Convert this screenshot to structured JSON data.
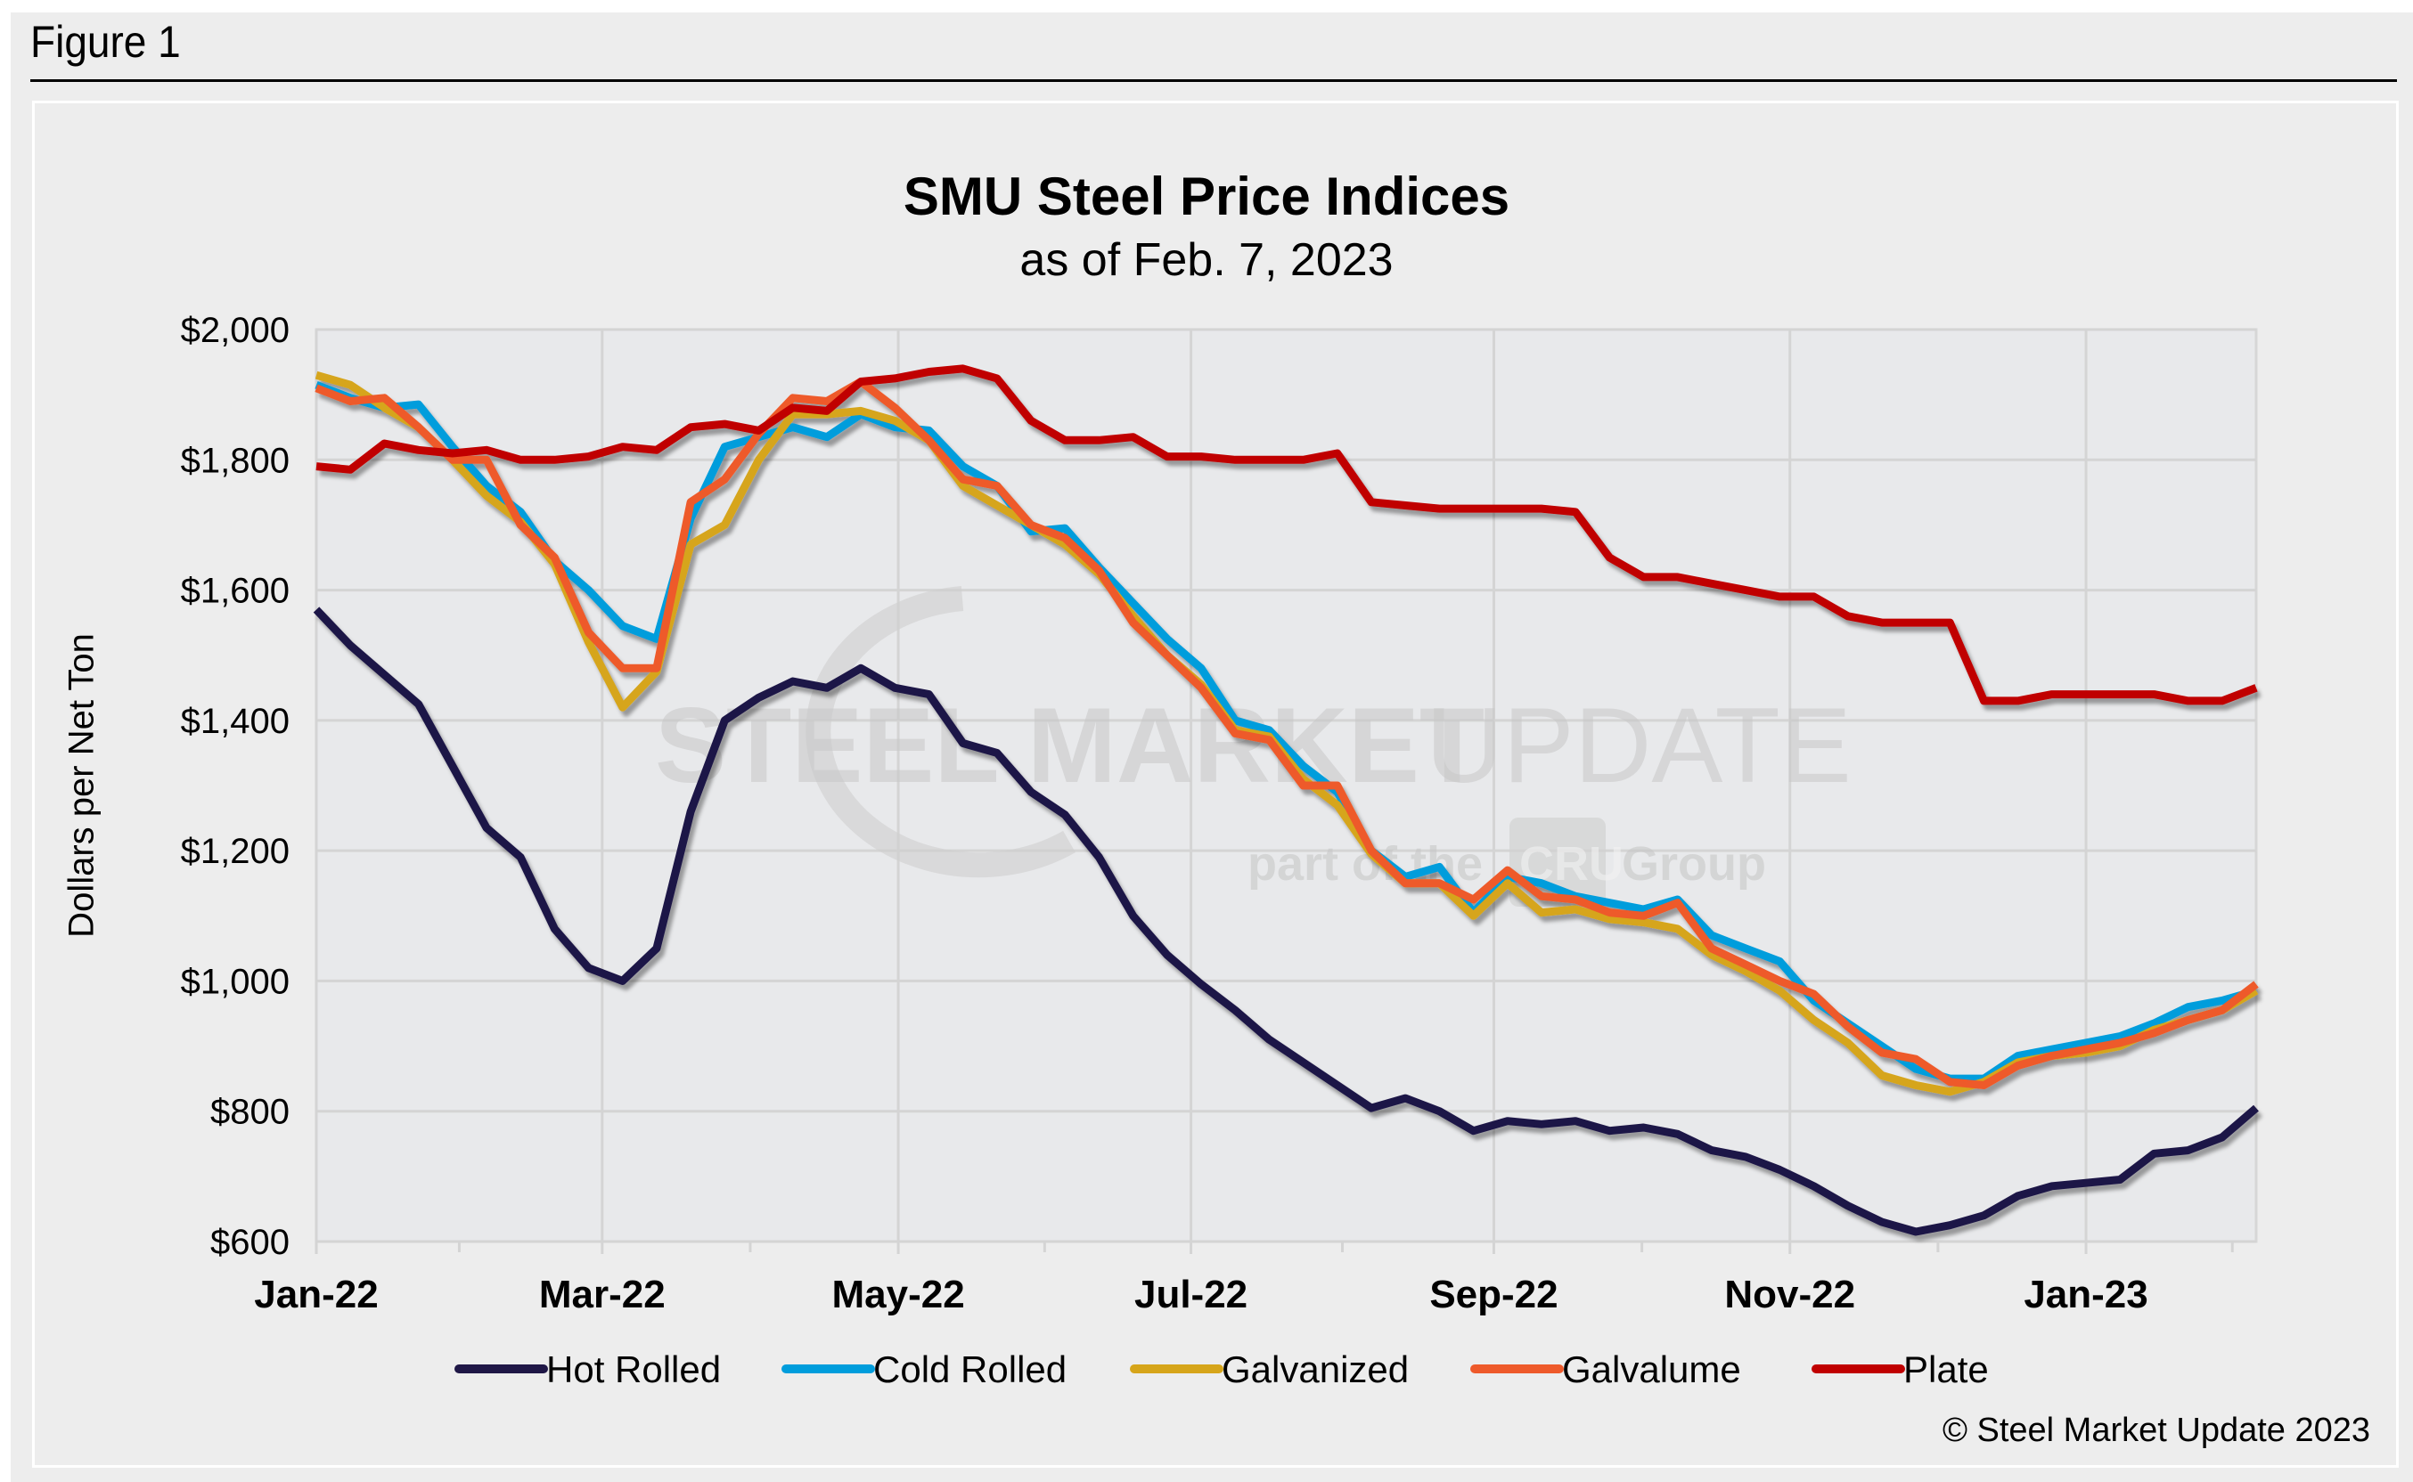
{
  "figure_label": "Figure 1",
  "copyright": "© Steel Market Update 2023",
  "watermark": {
    "line1_bold": "STEEL MARKET",
    "line1_thin": " UPDATE",
    "line2_left": "part of the",
    "line2_badge": "CRU",
    "line2_right": "Group"
  },
  "chart_data": {
    "type": "line",
    "title": "SMU Steel Price Indices",
    "subtitle": "as of Feb. 7, 2023",
    "xlabel": "",
    "ylabel": "Dollars per Net Ton",
    "ylim": [
      600,
      2000
    ],
    "yticks": [
      600,
      800,
      1000,
      1200,
      1400,
      1600,
      1800,
      2000
    ],
    "ytick_labels": [
      "$600",
      "$800",
      "$1,000",
      "$1,200",
      "$1,400",
      "$1,600",
      "$1,800",
      "$2,000"
    ],
    "x_start": "2022-01-04",
    "x_end": "2023-02-07",
    "x_frequency": "weekly",
    "xtick_labels": [
      "Jan-22",
      "Mar-22",
      "May-22",
      "Jul-22",
      "Sep-22",
      "Nov-22",
      "Jan-23"
    ],
    "xtick_weeks": [
      0,
      8.4,
      17.1,
      25.7,
      34.6,
      43.3,
      52.0
    ],
    "grid": true,
    "legend_position": "bottom",
    "series": [
      {
        "name": "Hot Rolled",
        "color": "#1f1746",
        "values": [
          1570,
          1515,
          1470,
          1425,
          1330,
          1235,
          1190,
          1080,
          1020,
          1000,
          1050,
          1260,
          1400,
          1435,
          1460,
          1450,
          1480,
          1450,
          1440,
          1365,
          1350,
          1290,
          1255,
          1190,
          1100,
          1040,
          995,
          955,
          910,
          875,
          840,
          805,
          820,
          800,
          770,
          785,
          780,
          785,
          770,
          775,
          765,
          740,
          730,
          710,
          685,
          655,
          630,
          615,
          625,
          640,
          670,
          685,
          690,
          695,
          735,
          740,
          760,
          805
        ]
      },
      {
        "name": "Cold Rolled",
        "color": "#009ddc",
        "values": [
          1915,
          1895,
          1880,
          1885,
          1820,
          1760,
          1720,
          1645,
          1600,
          1545,
          1525,
          1710,
          1820,
          1835,
          1850,
          1835,
          1870,
          1850,
          1845,
          1790,
          1760,
          1690,
          1695,
          1635,
          1580,
          1525,
          1480,
          1400,
          1385,
          1330,
          1290,
          1200,
          1160,
          1175,
          1105,
          1160,
          1150,
          1130,
          1120,
          1110,
          1125,
          1070,
          1050,
          1030,
          970,
          935,
          900,
          865,
          850,
          850,
          885,
          895,
          905,
          915,
          935,
          960,
          970,
          985
        ]
      },
      {
        "name": "Galvanized",
        "color": "#d6a51a",
        "values": [
          1930,
          1915,
          1880,
          1850,
          1800,
          1745,
          1705,
          1640,
          1520,
          1420,
          1475,
          1670,
          1700,
          1800,
          1870,
          1870,
          1875,
          1860,
          1830,
          1760,
          1730,
          1700,
          1670,
          1625,
          1560,
          1500,
          1455,
          1385,
          1375,
          1310,
          1270,
          1195,
          1150,
          1150,
          1100,
          1150,
          1105,
          1110,
          1095,
          1090,
          1080,
          1040,
          1015,
          985,
          940,
          905,
          855,
          840,
          830,
          845,
          875,
          885,
          890,
          900,
          925,
          940,
          955,
          985
        ]
      },
      {
        "name": "Galvalume",
        "color": "#ee5a2b",
        "values": [
          1910,
          1890,
          1895,
          1850,
          1800,
          1800,
          1700,
          1650,
          1535,
          1480,
          1480,
          1735,
          1770,
          1840,
          1895,
          1890,
          1920,
          1880,
          1830,
          1770,
          1760,
          1700,
          1680,
          1630,
          1550,
          1500,
          1450,
          1380,
          1370,
          1300,
          1300,
          1200,
          1150,
          1150,
          1125,
          1170,
          1130,
          1125,
          1105,
          1100,
          1120,
          1050,
          1025,
          1000,
          980,
          930,
          890,
          880,
          845,
          840,
          870,
          885,
          895,
          905,
          920,
          940,
          955,
          995
        ]
      },
      {
        "name": "Plate",
        "color": "#c00000",
        "values": [
          1790,
          1785,
          1825,
          1815,
          1810,
          1815,
          1800,
          1800,
          1805,
          1820,
          1815,
          1850,
          1855,
          1845,
          1880,
          1875,
          1920,
          1925,
          1935,
          1940,
          1925,
          1860,
          1830,
          1830,
          1835,
          1805,
          1805,
          1800,
          1800,
          1800,
          1810,
          1735,
          1730,
          1725,
          1725,
          1725,
          1725,
          1720,
          1650,
          1620,
          1620,
          1610,
          1600,
          1590,
          1590,
          1560,
          1550,
          1550,
          1550,
          1430,
          1430,
          1440,
          1440,
          1440,
          1440,
          1430,
          1430,
          1450
        ]
      }
    ]
  }
}
